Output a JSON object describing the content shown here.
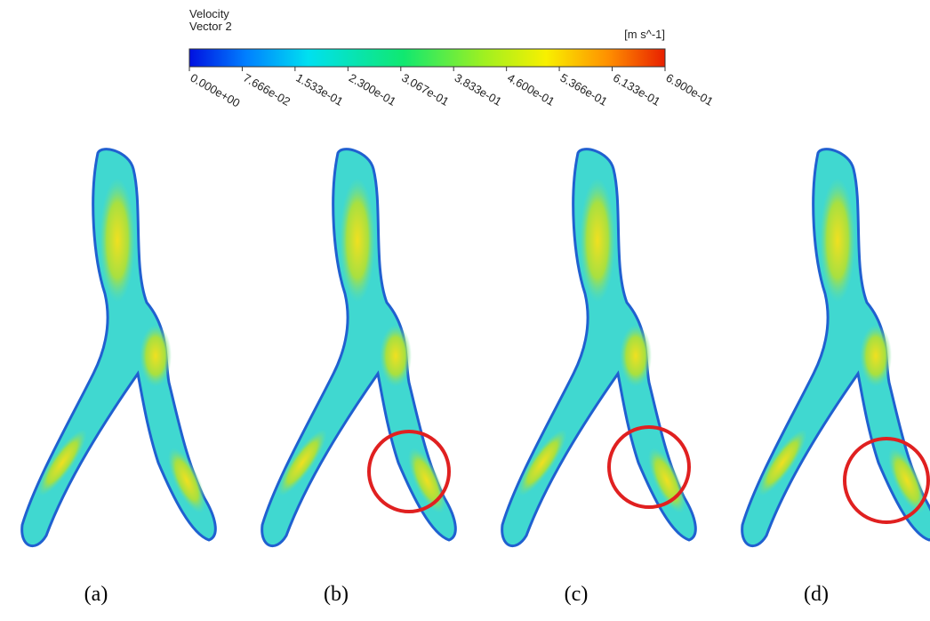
{
  "colorbar": {
    "title_lines": [
      "Velocity",
      "Vector 2"
    ],
    "unit": "[m s^-1]",
    "range": [
      0,
      0.69
    ],
    "ticks": [
      {
        "value": 0,
        "label": "0.000e+00"
      },
      {
        "value": 0.07666,
        "label": "7.666e-02"
      },
      {
        "value": 0.1533,
        "label": "1.533e-01"
      },
      {
        "value": 0.23,
        "label": "2.300e-01"
      },
      {
        "value": 0.3067,
        "label": "3.067e-01"
      },
      {
        "value": 0.3833,
        "label": "3.833e-01"
      },
      {
        "value": 0.46,
        "label": "4.600e-01"
      },
      {
        "value": 0.5366,
        "label": "5.366e-01"
      },
      {
        "value": 0.6133,
        "label": "6.133e-01"
      },
      {
        "value": 0.69,
        "label": "6.900e-01"
      }
    ]
  },
  "panels": [
    {
      "label": "(a)"
    },
    {
      "label": "(b)"
    },
    {
      "label": "(c)"
    },
    {
      "label": "(d)"
    }
  ]
}
